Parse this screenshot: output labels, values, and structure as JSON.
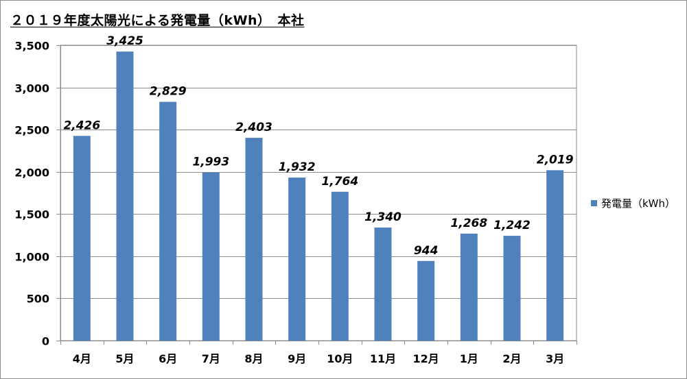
{
  "chart_data": {
    "type": "bar",
    "title": "２０１９年度太陽光による発電量（kWh）　本社",
    "xlabel": "",
    "ylabel": "",
    "categories": [
      "4月",
      "5月",
      "6月",
      "7月",
      "8月",
      "9月",
      "10月",
      "11月",
      "12月",
      "1月",
      "2月",
      "3月"
    ],
    "series": [
      {
        "name": "発電量（kWh）",
        "values": [
          2426,
          3425,
          2829,
          1993,
          2403,
          1932,
          1764,
          1340,
          944,
          1268,
          1242,
          2019
        ],
        "labels": [
          "2,426",
          "3,425",
          "2,829",
          "1,993",
          "2,403",
          "1,932",
          "1,764",
          "1,340",
          "944",
          "1,268",
          "1,242",
          "2,019"
        ],
        "color": "#4f81bd"
      }
    ],
    "ylim": [
      0,
      3500
    ],
    "yticks": [
      0,
      500,
      1000,
      1500,
      2000,
      2500,
      3000,
      3500
    ],
    "ytick_labels": [
      "0",
      "500",
      "1,000",
      "1,500",
      "2,000",
      "2,500",
      "3,000",
      "3,500"
    ],
    "grid": true,
    "legend_position": "right"
  }
}
